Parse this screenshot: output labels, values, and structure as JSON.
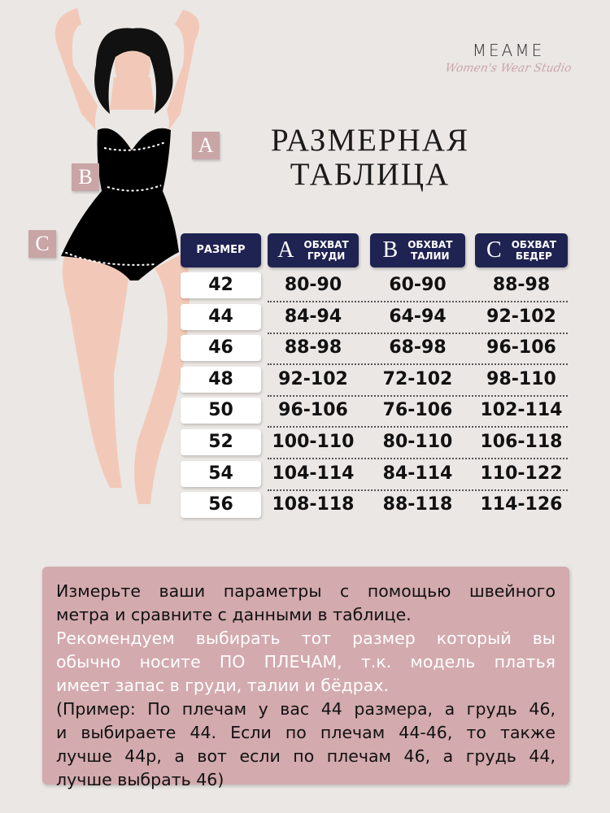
{
  "logo": {
    "brand": "MEAME",
    "tagline": "Women's Wear Studio"
  },
  "title": {
    "line1": "РАЗМЕРНАЯ",
    "line2": "ТАБЛИЦА"
  },
  "badges": {
    "a": "A",
    "b": "B",
    "c": "C"
  },
  "colors": {
    "background": "#ebe7e4",
    "header": "#1f2352",
    "badge": "#c9a5a6",
    "note_box": "#d3aaae"
  },
  "table": {
    "headers": [
      {
        "letter": "",
        "label1": "РАЗМЕР",
        "label2": ""
      },
      {
        "letter": "A",
        "label1": "ОБХВАТ",
        "label2": "ГРУДИ"
      },
      {
        "letter": "B",
        "label1": "ОБХВАТ",
        "label2": "ТАЛИИ"
      },
      {
        "letter": "C",
        "label1": "ОБХВАТ",
        "label2": "БЕДЕР"
      }
    ],
    "rows": [
      {
        "size": "42",
        "chest": "80-90",
        "waist": "60-90",
        "hips": "88-98"
      },
      {
        "size": "44",
        "chest": "84-94",
        "waist": "64-94",
        "hips": "92-102"
      },
      {
        "size": "46",
        "chest": "88-98",
        "waist": "68-98",
        "hips": "96-106"
      },
      {
        "size": "48",
        "chest": "92-102",
        "waist": "72-102",
        "hips": "98-110"
      },
      {
        "size": "50",
        "chest": "96-106",
        "waist": "76-106",
        "hips": "102-114"
      },
      {
        "size": "52",
        "chest": "100-110",
        "waist": "80-110",
        "hips": "106-118"
      },
      {
        "size": "54",
        "chest": "104-114",
        "waist": "84-114",
        "hips": "110-122"
      },
      {
        "size": "56",
        "chest": "108-118",
        "waist": "88-118",
        "hips": "114-126"
      }
    ]
  },
  "note": {
    "lines": [
      {
        "text": "Измерьте ваши параметры с помощью швейного",
        "color": "black"
      },
      {
        "text": "метра и сравните с данными в таблице.",
        "color": "black",
        "last": true
      },
      {
        "text": "Рекомендуем выбирать тот размер который вы",
        "color": "white"
      },
      {
        "text": "обычно носите ПО ПЛЕЧАМ, т.к. модель платья",
        "color": "white"
      },
      {
        "text": "имеет запас в груди, талии и бёдрах.",
        "color": "white",
        "last": true
      },
      {
        "text": "(Пример: По плечам у вас 44 размера, а грудь 46,",
        "color": "black"
      },
      {
        "text": "и выбираете 44. Если по плечам 44-46, то также",
        "color": "black"
      },
      {
        "text": "лучше 44р, а вот если по плечам 46, а грудь 44,",
        "color": "black"
      },
      {
        "text": "лучше выбрать 46)",
        "color": "black",
        "last": true
      }
    ]
  }
}
